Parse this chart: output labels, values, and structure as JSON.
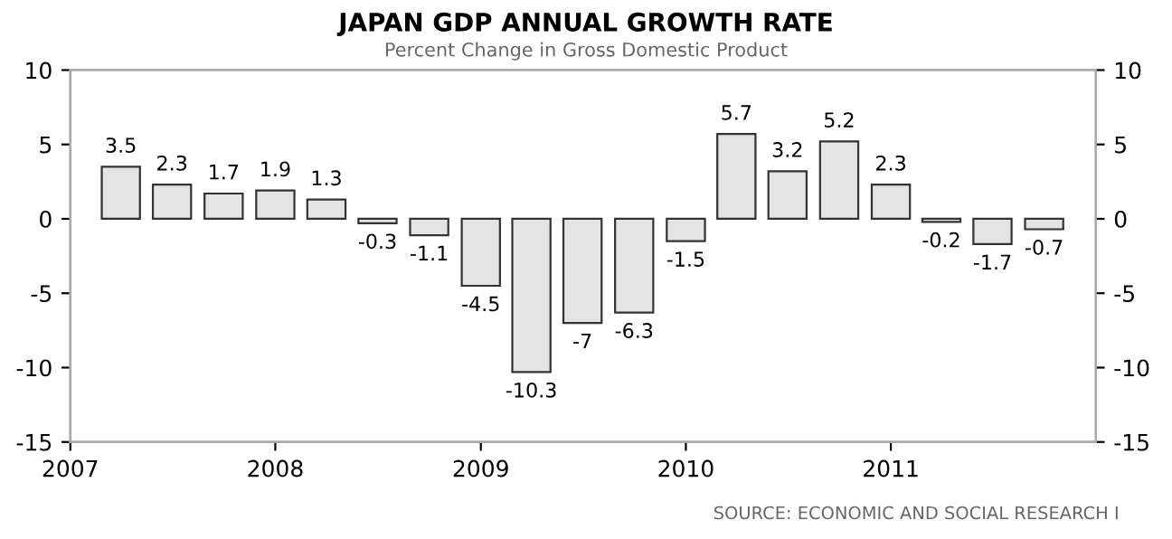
{
  "chart_data": {
    "type": "bar",
    "title": "JAPAN GDP ANNUAL GROWTH RATE",
    "subtitle": "Percent Change in Gross Domestic Product",
    "x": [
      "2007-04",
      "2007-07",
      "2007-10",
      "2008-01",
      "2008-04",
      "2008-07",
      "2008-10",
      "2009-01",
      "2009-04",
      "2009-07",
      "2009-10",
      "2010-01",
      "2010-04",
      "2010-07",
      "2010-10",
      "2011-01",
      "2011-04",
      "2011-07",
      "2011-10"
    ],
    "values": [
      3.5,
      2.3,
      1.7,
      1.9,
      1.3,
      -0.3,
      -1.1,
      -4.5,
      -10.3,
      -7,
      -6.3,
      -1.5,
      5.7,
      3.2,
      5.2,
      2.3,
      -0.2,
      -1.7,
      -0.7
    ],
    "color": "#e4e4e4",
    "data_labels": true,
    "xlim": [
      "2007",
      "2012"
    ],
    "xticks": [
      "2007",
      "2008",
      "2009",
      "2010",
      "2011"
    ],
    "ylim": [
      -15,
      10
    ],
    "yticks": [
      -15,
      -10,
      -5,
      0,
      5,
      10
    ],
    "y2lim": [
      -15,
      10
    ],
    "y2ticks": [
      -15,
      -10,
      -5,
      0,
      5,
      10
    ],
    "grid": false,
    "annotations": [
      "SOURCE: ECONOMIC AND SOCIAL RESEARCH I"
    ]
  }
}
